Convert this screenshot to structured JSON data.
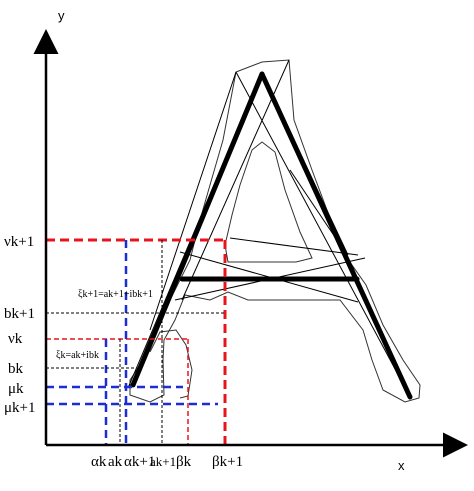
{
  "axes": {
    "x_label": "x",
    "y_label": "y"
  },
  "y_labels": {
    "nu_k1": "νk+1",
    "b_k1": "bk+1",
    "nu_k": "νk",
    "b_k": "bk",
    "mu_k": "μk",
    "mu_k1": "μk+1"
  },
  "x_labels": {
    "alpha_k": "αk",
    "a_k": "ak",
    "alpha_k1": "αk+1",
    "a_k1": "ak+1",
    "beta_k": "βk",
    "beta_k1": "βk+1"
  },
  "annotations": {
    "xi_k1": "ξk+1=ak+1+ibk+1",
    "xi_k": "ξk=ak+ibk"
  },
  "colors": {
    "red": "#e8141c",
    "blue": "#1b2fd1",
    "black": "#000000"
  }
}
